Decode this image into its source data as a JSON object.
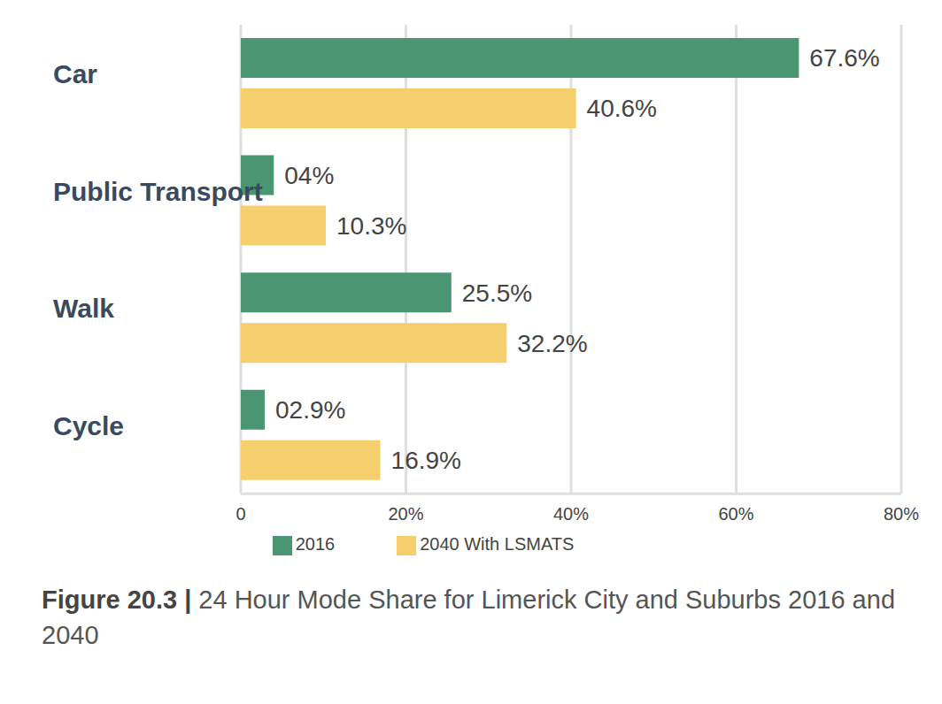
{
  "chart_data": {
    "type": "bar",
    "orientation": "horizontal",
    "title": "Figure 20.3 | 24 Hour Mode Share for Limerick City and Suburbs 2016 and 2040",
    "categories": [
      "Car",
      "Public Transport",
      "Walk",
      "Cycle"
    ],
    "series": [
      {
        "name": "2016",
        "color": "#4a9673",
        "values": [
          67.6,
          4,
          25.5,
          2.9
        ],
        "value_labels": [
          "67.6%",
          "04%",
          "25.5%",
          "02.9%"
        ]
      },
      {
        "name": "2040 With LSMATS",
        "color": "#f5cf6e",
        "values": [
          40.6,
          10.3,
          32.2,
          16.9
        ],
        "value_labels": [
          "40.6%",
          "10.3%",
          "32.2%",
          "16.9%"
        ]
      }
    ],
    "xlim": [
      0,
      80
    ],
    "xticks": [
      0,
      {
        "value": 20,
        "label": "20%"
      },
      {
        "value": 40,
        "label": "40%"
      },
      {
        "value": 60,
        "label": "60%"
      },
      {
        "value": 80,
        "label": "80%"
      }
    ],
    "grid": true,
    "legend": "bottom",
    "data_labels": true
  }
}
